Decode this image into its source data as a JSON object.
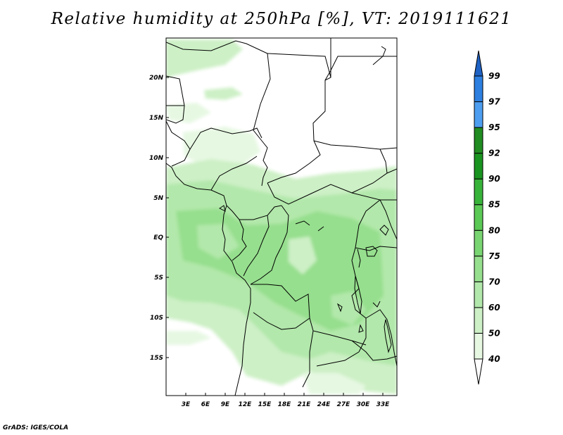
{
  "title": "Relative humidity at 250hPa [%], VT: 2019111621",
  "credit": "GrADS: IGES/COLA",
  "map": {
    "lat_labels": [
      "20N",
      "15N",
      "10N",
      "5N",
      "EQ",
      "5S",
      "10S",
      "15S"
    ],
    "lon_labels": [
      "3E",
      "6E",
      "9E",
      "12E",
      "15E",
      "18E",
      "21E",
      "24E",
      "27E",
      "30E",
      "33E"
    ]
  },
  "colorbar": {
    "levels": [
      "40",
      "50",
      "60",
      "70",
      "75",
      "80",
      "85",
      "90",
      "92",
      "95",
      "97",
      "99"
    ],
    "colors": [
      "#ffffff",
      "#e6f8e2",
      "#cdf0c6",
      "#b2e8ab",
      "#96df8e",
      "#79d572",
      "#5bc955",
      "#38b33a",
      "#1a9420",
      "#218c21",
      "#4d9ef0",
      "#2d7fe0",
      "#1e62c4"
    ]
  }
}
